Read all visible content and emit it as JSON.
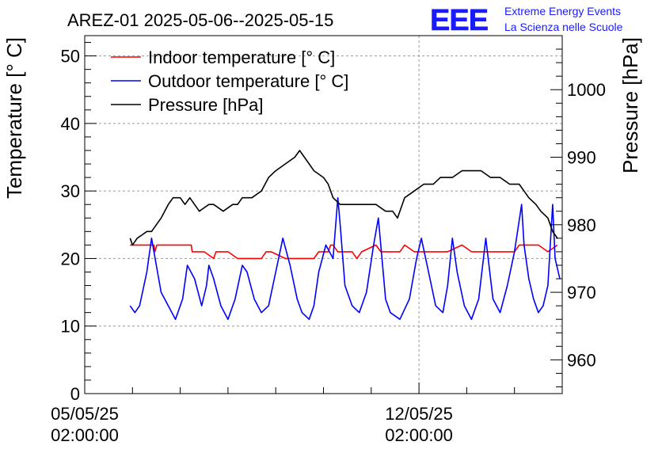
{
  "chart_data": {
    "type": "line",
    "title": "AREZ-01 2025-05-06--2025-05-15",
    "logo": {
      "mark": "EEE",
      "line1": "Extreme Energy Events",
      "line2": "La Scienza nelle Scuole",
      "color": "#1a1aff"
    },
    "ylabel_left": "Temperature [° C]",
    "ylabel_right": "Pressure [hPa]",
    "ylim_left": [
      0,
      53
    ],
    "ylim_right": [
      955,
      1008
    ],
    "yticks_left": [
      0,
      10,
      20,
      30,
      40,
      50
    ],
    "yticks_right": [
      960,
      970,
      980,
      990,
      1000
    ],
    "x_range_days": [
      0,
      10
    ],
    "x_ticks": [
      {
        "day": 0,
        "date": "05/05/25",
        "time": "02:00:00"
      },
      {
        "day": 7,
        "date": "12/05/25",
        "time": "02:00:00"
      }
    ],
    "grid": true,
    "legend_position": "top-left",
    "series": [
      {
        "name": "Indoor temperature [° C]",
        "axis": "left",
        "color": "#ff0000",
        "x": [
          0.95,
          1.0,
          1.3,
          1.45,
          1.47,
          1.51,
          1.7,
          2.23,
          2.25,
          2.4,
          2.5,
          2.7,
          2.75,
          3.0,
          3.2,
          3.5,
          3.7,
          3.8,
          3.9,
          4.2,
          4.4,
          4.6,
          4.8,
          4.9,
          5.1,
          5.15,
          5.2,
          5.3,
          5.4,
          5.6,
          5.7,
          5.8,
          6.1,
          6.2,
          6.4,
          6.6,
          6.7,
          6.9,
          7.2,
          7.5,
          7.6,
          7.9,
          8.1,
          8.3,
          8.5,
          8.9,
          9.0,
          9.1,
          9.3,
          9.35,
          9.5,
          9.7,
          9.9
        ],
        "y": [
          22,
          22,
          22,
          22,
          21,
          22,
          22,
          22,
          21,
          21,
          21,
          20,
          21,
          21,
          20,
          20,
          20,
          21,
          21,
          20,
          20,
          20,
          20,
          21,
          21,
          22,
          22,
          21,
          21,
          21,
          20,
          21,
          22,
          21,
          21,
          21,
          22,
          21,
          21,
          21,
          21,
          22,
          21,
          21,
          21,
          21,
          21,
          22,
          22,
          22,
          22,
          21,
          22
        ]
      },
      {
        "name": "Outdoor temperature [° C]",
        "axis": "left",
        "color": "#0000ff",
        "x": [
          0.95,
          1.05,
          1.15,
          1.3,
          1.4,
          1.5,
          1.6,
          1.75,
          1.9,
          2.05,
          2.15,
          2.3,
          2.45,
          2.55,
          2.6,
          2.7,
          2.85,
          3.0,
          3.15,
          3.3,
          3.4,
          3.55,
          3.7,
          3.85,
          4.0,
          4.15,
          4.3,
          4.45,
          4.55,
          4.7,
          4.8,
          4.9,
          5.05,
          5.2,
          5.3,
          5.35,
          5.45,
          5.6,
          5.75,
          5.9,
          6.05,
          6.15,
          6.25,
          6.3,
          6.4,
          6.6,
          6.8,
          6.95,
          7.05,
          7.2,
          7.35,
          7.5,
          7.6,
          7.7,
          7.8,
          7.95,
          8.1,
          8.25,
          8.4,
          8.5,
          8.55,
          8.7,
          8.85,
          9.0,
          9.15,
          9.2,
          9.3,
          9.4,
          9.5,
          9.6,
          9.7,
          9.75,
          9.8,
          9.85,
          9.95
        ],
        "y": [
          13,
          12,
          13,
          18,
          23,
          19,
          15,
          13,
          11,
          14,
          19,
          17,
          13,
          16,
          19,
          17,
          13,
          11,
          14,
          19,
          18,
          14,
          12,
          13,
          18,
          23,
          19,
          14,
          12,
          11,
          13,
          18,
          22,
          20,
          29,
          25,
          16,
          13,
          12,
          15,
          22,
          26,
          18,
          14,
          12,
          11,
          14,
          20,
          23,
          18,
          13,
          12,
          16,
          23,
          18,
          13,
          11,
          14,
          23,
          17,
          14,
          12,
          16,
          21,
          28,
          22,
          17,
          14,
          12,
          13,
          16,
          22,
          28,
          20,
          17
        ]
      },
      {
        "name": "Pressure [hPa]",
        "axis": "right",
        "color": "#000000",
        "x": [
          0.95,
          1.0,
          1.05,
          1.1,
          1.2,
          1.3,
          1.4,
          1.5,
          1.6,
          1.75,
          1.85,
          2.0,
          2.1,
          2.2,
          2.3,
          2.4,
          2.6,
          2.7,
          2.9,
          3.1,
          3.2,
          3.3,
          3.5,
          3.7,
          3.85,
          4.0,
          4.2,
          4.4,
          4.5,
          4.6,
          4.7,
          4.8,
          5.0,
          5.1,
          5.2,
          5.35,
          5.5,
          5.65,
          5.8,
          6.0,
          6.1,
          6.3,
          6.45,
          6.55,
          6.7,
          6.9,
          7.1,
          7.3,
          7.45,
          7.55,
          7.7,
          7.9,
          8.1,
          8.3,
          8.5,
          8.7,
          8.9,
          9.1,
          9.2,
          9.3,
          9.45,
          9.55,
          9.7,
          9.8,
          9.9
        ],
        "y": [
          978,
          977,
          977.5,
          978,
          978.5,
          979,
          979,
          980,
          981,
          983,
          984,
          984,
          983,
          984,
          983,
          982,
          983,
          983,
          982,
          983,
          983,
          984,
          984,
          985,
          987,
          988,
          989,
          990,
          991,
          990,
          989,
          988,
          987,
          986,
          984,
          983,
          983,
          983,
          983,
          983,
          983,
          982,
          982,
          981,
          984,
          985,
          986,
          986,
          987,
          987,
          987,
          988,
          988,
          988,
          987,
          987,
          986,
          986,
          985,
          984,
          983,
          982,
          981,
          979,
          978
        ]
      }
    ]
  }
}
